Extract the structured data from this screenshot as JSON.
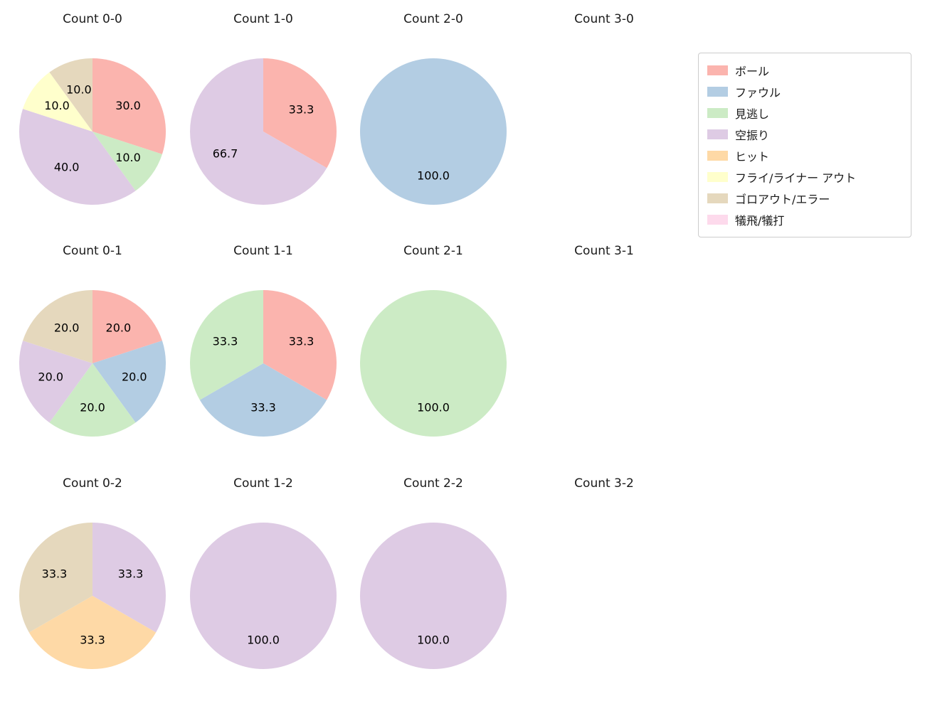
{
  "figure": {
    "background": "#ffffff",
    "text_color": "#1a1a1a"
  },
  "legend": {
    "position": "top-right",
    "items": [
      {
        "label": "ボール",
        "color": "#fbb4ae"
      },
      {
        "label": "ファウル",
        "color": "#b3cde3"
      },
      {
        "label": "見逃し",
        "color": "#ccebc5"
      },
      {
        "label": "空振り",
        "color": "#decbe4"
      },
      {
        "label": "ヒット",
        "color": "#fed9a6"
      },
      {
        "label": "フライ/ライナー アウト",
        "color": "#ffffcc"
      },
      {
        "label": "ゴロアウト/エラー",
        "color": "#e5d8bd"
      },
      {
        "label": "犠飛/犠打",
        "color": "#fddaec"
      }
    ]
  },
  "chart_data": [
    {
      "type": "pie",
      "title": "Count 0-0",
      "start_angle_deg": 90,
      "clockwise": true,
      "label_format": "percent_one_decimal",
      "slices": [
        {
          "label": "ボール",
          "value": 30.0,
          "color": "#fbb4ae"
        },
        {
          "label": "見逃し",
          "value": 10.0,
          "color": "#ccebc5"
        },
        {
          "label": "空振り",
          "value": 40.0,
          "color": "#decbe4"
        },
        {
          "label": "フライ/ライナー アウト",
          "value": 10.0,
          "color": "#ffffcc"
        },
        {
          "label": "ゴロアウト/エラー",
          "value": 10.0,
          "color": "#e5d8bd"
        }
      ]
    },
    {
      "type": "pie",
      "title": "Count 1-0",
      "start_angle_deg": 90,
      "clockwise": true,
      "label_format": "percent_one_decimal",
      "slices": [
        {
          "label": "ボール",
          "value": 33.3,
          "color": "#fbb4ae"
        },
        {
          "label": "空振り",
          "value": 66.7,
          "color": "#decbe4"
        }
      ]
    },
    {
      "type": "pie",
      "title": "Count 2-0",
      "start_angle_deg": 90,
      "clockwise": true,
      "label_format": "percent_one_decimal",
      "slices": [
        {
          "label": "ファウル",
          "value": 100.0,
          "color": "#b3cde3"
        }
      ]
    },
    {
      "type": "pie",
      "title": "Count 3-0",
      "start_angle_deg": 90,
      "clockwise": true,
      "label_format": "percent_one_decimal",
      "slices": []
    },
    {
      "type": "pie",
      "title": "Count 0-1",
      "start_angle_deg": 90,
      "clockwise": true,
      "label_format": "percent_one_decimal",
      "slices": [
        {
          "label": "ボール",
          "value": 20.0,
          "color": "#fbb4ae"
        },
        {
          "label": "ファウル",
          "value": 20.0,
          "color": "#b3cde3"
        },
        {
          "label": "見逃し",
          "value": 20.0,
          "color": "#ccebc5"
        },
        {
          "label": "空振り",
          "value": 20.0,
          "color": "#decbe4"
        },
        {
          "label": "ゴロアウト/エラー",
          "value": 20.0,
          "color": "#e5d8bd"
        }
      ]
    },
    {
      "type": "pie",
      "title": "Count 1-1",
      "start_angle_deg": 90,
      "clockwise": true,
      "label_format": "percent_one_decimal",
      "slices": [
        {
          "label": "ボール",
          "value": 33.3,
          "color": "#fbb4ae"
        },
        {
          "label": "ファウル",
          "value": 33.3,
          "color": "#b3cde3"
        },
        {
          "label": "見逃し",
          "value": 33.3,
          "color": "#ccebc5"
        }
      ]
    },
    {
      "type": "pie",
      "title": "Count 2-1",
      "start_angle_deg": 90,
      "clockwise": true,
      "label_format": "percent_one_decimal",
      "slices": [
        {
          "label": "見逃し",
          "value": 100.0,
          "color": "#ccebc5"
        }
      ]
    },
    {
      "type": "pie",
      "title": "Count 3-1",
      "start_angle_deg": 90,
      "clockwise": true,
      "label_format": "percent_one_decimal",
      "slices": []
    },
    {
      "type": "pie",
      "title": "Count 0-2",
      "start_angle_deg": 90,
      "clockwise": true,
      "label_format": "percent_one_decimal",
      "slices": [
        {
          "label": "空振り",
          "value": 33.3,
          "color": "#decbe4"
        },
        {
          "label": "ヒット",
          "value": 33.3,
          "color": "#fed9a6"
        },
        {
          "label": "ゴロアウト/エラー",
          "value": 33.3,
          "color": "#e5d8bd"
        }
      ]
    },
    {
      "type": "pie",
      "title": "Count 1-2",
      "start_angle_deg": 90,
      "clockwise": true,
      "label_format": "percent_one_decimal",
      "slices": [
        {
          "label": "空振り",
          "value": 100.0,
          "color": "#decbe4"
        }
      ]
    },
    {
      "type": "pie",
      "title": "Count 2-2",
      "start_angle_deg": 90,
      "clockwise": true,
      "label_format": "percent_one_decimal",
      "slices": [
        {
          "label": "空振り",
          "value": 100.0,
          "color": "#decbe4"
        }
      ]
    },
    {
      "type": "pie",
      "title": "Count 3-2",
      "start_angle_deg": 90,
      "clockwise": true,
      "label_format": "percent_one_decimal",
      "slices": []
    }
  ]
}
